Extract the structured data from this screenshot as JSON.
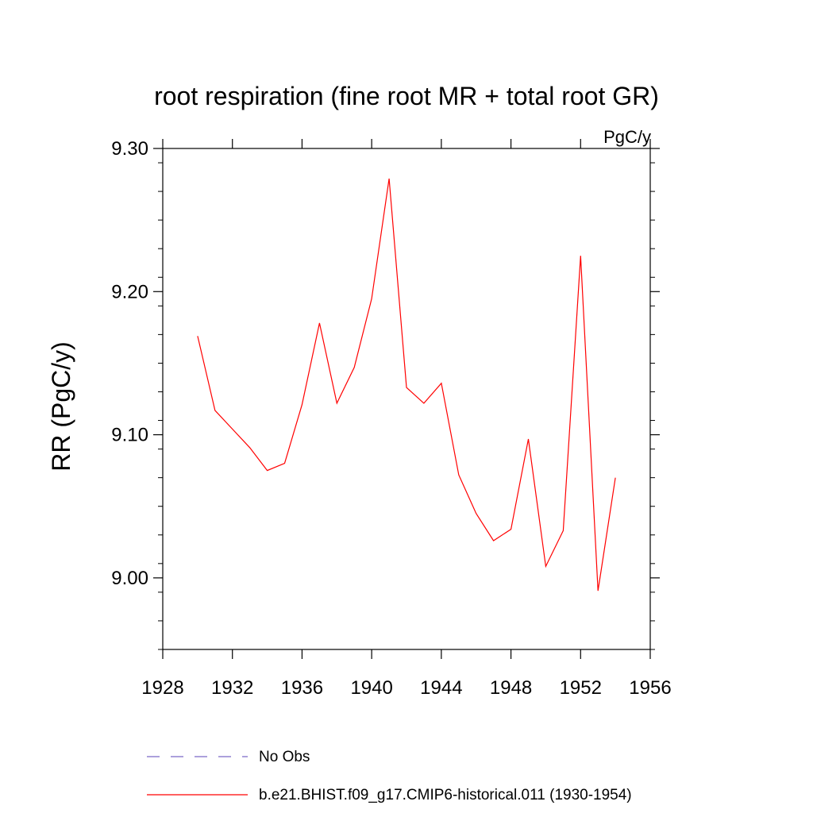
{
  "chart_data": {
    "type": "line",
    "title": "root respiration (fine root MR + total root GR)",
    "units_label": "PgC/y",
    "ylabel": "RR  (PgC/y)",
    "xlabel": "",
    "xlim": [
      1928,
      1956
    ],
    "ylim": [
      8.95,
      9.3
    ],
    "x_ticks": [
      1928,
      1932,
      1936,
      1940,
      1944,
      1948,
      1952,
      1956
    ],
    "x_tick_labels": [
      "1928",
      "1932",
      "1936",
      "1940",
      "1944",
      "1948",
      "1952",
      "1956"
    ],
    "y_ticks": [
      9.0,
      9.1,
      9.2,
      9.3
    ],
    "y_tick_labels": [
      "9.00",
      "9.10",
      "9.20",
      "9.30"
    ],
    "grid": false,
    "legend_position": "bottom",
    "series": [
      {
        "name": "b.e21.BHIST.f09_g17.CMIP6-historical.011 (1930-1954)",
        "color": "#ff0000",
        "style": "solid",
        "x": [
          1930,
          1931,
          1932,
          1933,
          1934,
          1935,
          1936,
          1937,
          1938,
          1939,
          1940,
          1941,
          1942,
          1943,
          1944,
          1945,
          1946,
          1947,
          1948,
          1949,
          1950,
          1951,
          1952,
          1953,
          1954
        ],
        "y": [
          9.169,
          9.117,
          9.104,
          9.091,
          9.075,
          9.08,
          9.121,
          9.178,
          9.122,
          9.147,
          9.195,
          9.279,
          9.133,
          9.122,
          9.136,
          9.072,
          9.045,
          9.026,
          9.034,
          9.097,
          9.008,
          9.033,
          9.225,
          8.991,
          9.07
        ]
      }
    ],
    "legend": [
      {
        "label": "No Obs",
        "color": "#7b68c8",
        "style": "dashed"
      },
      {
        "label": "b.e21.BHIST.f09_g17.CMIP6-historical.011 (1930-1954)",
        "color": "#ff0000",
        "style": "solid"
      }
    ]
  }
}
